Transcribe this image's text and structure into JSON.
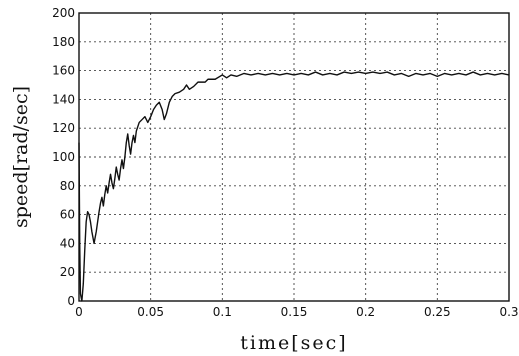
{
  "chart_data": {
    "type": "line",
    "title": "",
    "xlabel": "time[sec]",
    "ylabel": "speed[rad/sec]",
    "xlim": [
      0,
      0.3
    ],
    "ylim": [
      0,
      200
    ],
    "grid": true,
    "legend": "none",
    "x_ticks": [
      0,
      0.05,
      0.1,
      0.15,
      0.2,
      0.25,
      0.3
    ],
    "x_tick_labels": [
      "0",
      "0.05",
      "0.1",
      "0.15",
      "0.2",
      "0.25",
      "0.3"
    ],
    "y_ticks": [
      0,
      20,
      40,
      60,
      80,
      100,
      120,
      140,
      160,
      180,
      200
    ],
    "y_tick_labels": [
      "0",
      "20",
      "40",
      "60",
      "80",
      "100",
      "120",
      "140",
      "160",
      "180",
      "200"
    ],
    "series": [
      {
        "color": "#111111",
        "points": [
          [
            0,
            110
          ],
          [
            0.0005,
            40
          ],
          [
            0.001,
            5
          ],
          [
            0.002,
            0
          ],
          [
            0.003,
            12
          ],
          [
            0.004,
            35
          ],
          [
            0.005,
            55
          ],
          [
            0.006,
            62
          ],
          [
            0.007,
            60
          ],
          [
            0.008,
            55
          ],
          [
            0.009,
            48
          ],
          [
            0.0105,
            40
          ],
          [
            0.012,
            48
          ],
          [
            0.013,
            55
          ],
          [
            0.014,
            62
          ],
          [
            0.015,
            68
          ],
          [
            0.016,
            72
          ],
          [
            0.017,
            66
          ],
          [
            0.018,
            74
          ],
          [
            0.019,
            80
          ],
          [
            0.02,
            75
          ],
          [
            0.021,
            82
          ],
          [
            0.022,
            88
          ],
          [
            0.023,
            82
          ],
          [
            0.024,
            78
          ],
          [
            0.025,
            85
          ],
          [
            0.026,
            93
          ],
          [
            0.027,
            88
          ],
          [
            0.028,
            84
          ],
          [
            0.029,
            92
          ],
          [
            0.03,
            98
          ],
          [
            0.031,
            92
          ],
          [
            0.032,
            100
          ],
          [
            0.033,
            110
          ],
          [
            0.034,
            116
          ],
          [
            0.035,
            108
          ],
          [
            0.036,
            102
          ],
          [
            0.037,
            110
          ],
          [
            0.038,
            115
          ],
          [
            0.039,
            110
          ],
          [
            0.04,
            118
          ],
          [
            0.042,
            124
          ],
          [
            0.044,
            126
          ],
          [
            0.046,
            128
          ],
          [
            0.048,
            124
          ],
          [
            0.05,
            128
          ],
          [
            0.052,
            133
          ],
          [
            0.054,
            136
          ],
          [
            0.056,
            138
          ],
          [
            0.058,
            133
          ],
          [
            0.0595,
            126
          ],
          [
            0.061,
            130
          ],
          [
            0.063,
            138
          ],
          [
            0.065,
            142
          ],
          [
            0.067,
            144
          ],
          [
            0.07,
            145
          ],
          [
            0.073,
            147
          ],
          [
            0.075,
            150
          ],
          [
            0.077,
            147
          ],
          [
            0.08,
            149
          ],
          [
            0.083,
            152
          ],
          [
            0.085,
            152
          ],
          [
            0.088,
            152
          ],
          [
            0.09,
            154
          ],
          [
            0.095,
            154
          ],
          [
            0.1,
            157
          ],
          [
            0.103,
            155
          ],
          [
            0.106,
            157
          ],
          [
            0.11,
            156
          ],
          [
            0.115,
            158
          ],
          [
            0.12,
            157
          ],
          [
            0.125,
            158
          ],
          [
            0.13,
            157
          ],
          [
            0.135,
            158
          ],
          [
            0.14,
            157
          ],
          [
            0.145,
            158
          ],
          [
            0.15,
            157
          ],
          [
            0.155,
            158
          ],
          [
            0.16,
            157
          ],
          [
            0.165,
            159
          ],
          [
            0.17,
            157
          ],
          [
            0.175,
            158
          ],
          [
            0.18,
            157
          ],
          [
            0.185,
            159
          ],
          [
            0.19,
            158
          ],
          [
            0.195,
            159
          ],
          [
            0.2,
            158
          ],
          [
            0.205,
            159
          ],
          [
            0.21,
            158
          ],
          [
            0.215,
            159
          ],
          [
            0.22,
            157
          ],
          [
            0.225,
            158
          ],
          [
            0.23,
            156
          ],
          [
            0.235,
            158
          ],
          [
            0.24,
            157
          ],
          [
            0.245,
            158
          ],
          [
            0.25,
            156
          ],
          [
            0.255,
            158
          ],
          [
            0.26,
            157
          ],
          [
            0.265,
            158
          ],
          [
            0.27,
            157
          ],
          [
            0.275,
            159
          ],
          [
            0.28,
            157
          ],
          [
            0.285,
            158
          ],
          [
            0.29,
            157
          ],
          [
            0.295,
            158
          ],
          [
            0.3,
            157
          ]
        ]
      }
    ]
  }
}
